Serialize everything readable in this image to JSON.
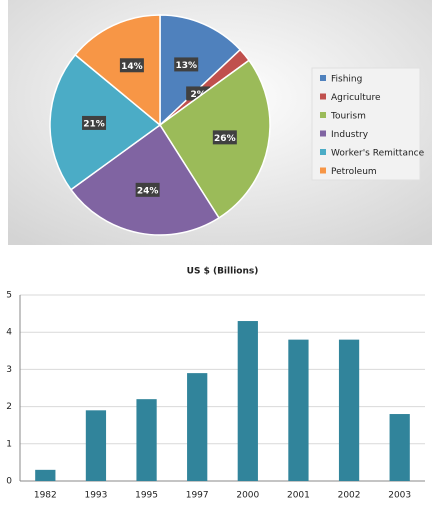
{
  "chart_data": [
    {
      "type": "pie",
      "categories": [
        "Fishing",
        "Agriculture",
        "Tourism",
        "Industry",
        "Worker's Remittance",
        "Petroleum"
      ],
      "values": [
        13,
        2,
        26,
        24,
        21,
        14
      ],
      "value_labels": [
        "13%",
        "2%",
        "26%",
        "24%",
        "21%",
        "14%"
      ],
      "colors": [
        "#4f81bd",
        "#c0504d",
        "#9bbb59",
        "#8064a2",
        "#4bacc6",
        "#f79646"
      ],
      "legend": "right"
    },
    {
      "type": "bar",
      "title": "US $ (Billions)",
      "categories": [
        "1982",
        "1993",
        "1995",
        "1997",
        "2000",
        "2001",
        "2002",
        "2003"
      ],
      "values": [
        0.3,
        1.9,
        2.2,
        2.9,
        4.3,
        3.8,
        3.8,
        1.8
      ],
      "color": "#31849b",
      "ylim": [
        0,
        5
      ],
      "yticks": [
        0,
        1,
        2,
        3,
        4,
        5
      ],
      "grid": true
    }
  ]
}
